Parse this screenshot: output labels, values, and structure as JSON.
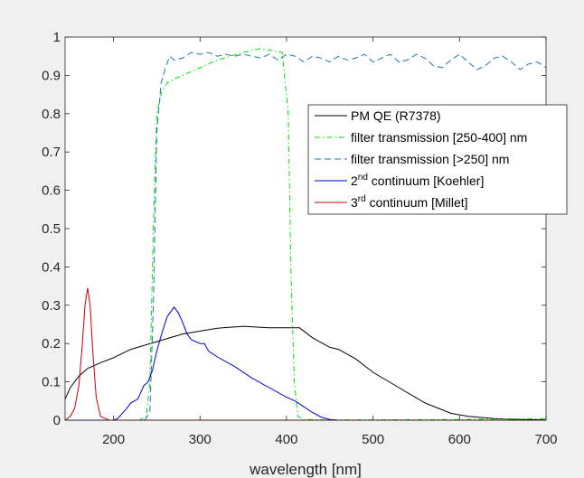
{
  "chart_data": {
    "type": "line",
    "title": "",
    "xlabel": "wavelength [nm]",
    "ylabel": "",
    "xlim": [
      144,
      700
    ],
    "ylim": [
      0,
      1
    ],
    "xticks": [
      200,
      300,
      400,
      500,
      600,
      700
    ],
    "yticks": [
      0,
      0.1,
      0.2,
      0.3,
      0.4,
      0.5,
      0.6,
      0.7,
      0.8,
      0.9,
      1
    ],
    "xtick_labels": [
      "200",
      "300",
      "400",
      "500",
      "600",
      "700"
    ],
    "ytick_labels": [
      "0",
      "0.1",
      "0.2",
      "0.3",
      "0.4",
      "0.5",
      "0.6",
      "0.7",
      "0.8",
      "0.9",
      "1"
    ],
    "grid": false,
    "legend_position": "top-right",
    "series": [
      {
        "name": "PM QE (R7378)",
        "legend_text": "PM QE (R7378)",
        "color": "#000000",
        "dash": "solid",
        "x": [
          144,
          150,
          160,
          170,
          185,
          200,
          220,
          250,
          280,
          320,
          350,
          380,
          415,
          430,
          450,
          460,
          480,
          500,
          530,
          560,
          590,
          610,
          640,
          670,
          700
        ],
        "y": [
          0.055,
          0.085,
          0.115,
          0.135,
          0.15,
          0.163,
          0.185,
          0.205,
          0.225,
          0.24,
          0.245,
          0.241,
          0.241,
          0.215,
          0.19,
          0.185,
          0.16,
          0.125,
          0.085,
          0.045,
          0.018,
          0.01,
          0.004,
          0.002,
          0.001
        ]
      },
      {
        "name": "filter transmission [250-400] nm",
        "legend_text": "filter transmission [250-400] nm",
        "color": "#00e600",
        "dash": "dashdot",
        "x": [
          144,
          230,
          238,
          242,
          246,
          250,
          256,
          262,
          270,
          290,
          320,
          350,
          370,
          395,
          402,
          405,
          409,
          413,
          420,
          440,
          500,
          600,
          700
        ],
        "y": [
          0,
          0,
          0.01,
          0.1,
          0.5,
          0.8,
          0.86,
          0.88,
          0.89,
          0.91,
          0.94,
          0.96,
          0.97,
          0.96,
          0.8,
          0.4,
          0.1,
          0.01,
          0.002,
          0.001,
          0.001,
          0.002,
          0.004
        ]
      },
      {
        "name": "filter transmission [>250] nm",
        "legend_text": "filter transmission [>250] nm",
        "color": "#1f77b4",
        "dash": "dashed",
        "x": [
          144,
          236,
          242,
          246,
          250,
          255,
          260,
          265,
          270,
          280,
          290,
          300,
          310,
          320,
          330,
          340,
          350,
          360,
          370,
          380,
          390,
          400,
          410,
          420,
          430,
          440,
          450,
          460,
          470,
          480,
          490,
          500,
          510,
          520,
          530,
          540,
          550,
          560,
          570,
          580,
          590,
          600,
          610,
          620,
          630,
          640,
          650,
          660,
          670,
          680,
          690,
          700
        ],
        "y": [
          0,
          0,
          0.02,
          0.3,
          0.75,
          0.88,
          0.92,
          0.95,
          0.94,
          0.945,
          0.96,
          0.955,
          0.96,
          0.95,
          0.955,
          0.95,
          0.955,
          0.95,
          0.945,
          0.955,
          0.94,
          0.955,
          0.95,
          0.935,
          0.95,
          0.945,
          0.935,
          0.95,
          0.94,
          0.945,
          0.955,
          0.935,
          0.945,
          0.955,
          0.935,
          0.94,
          0.955,
          0.945,
          0.925,
          0.92,
          0.94,
          0.955,
          0.935,
          0.915,
          0.925,
          0.945,
          0.95,
          0.935,
          0.915,
          0.93,
          0.935,
          0.92
        ]
      },
      {
        "name": "2nd continuum [Koehler]",
        "legend_text": "continuum [Koehler]",
        "legend_sup": "nd",
        "legend_num": "2",
        "color": "#0000cc",
        "dash": "solid",
        "x": [
          144,
          200,
          205,
          215,
          220,
          228,
          235,
          240,
          245,
          250,
          255,
          262,
          270,
          275,
          280,
          285,
          290,
          300,
          305,
          310,
          320,
          340,
          360,
          380,
          400,
          410,
          420,
          430,
          440,
          450,
          460
        ],
        "y": [
          0,
          0,
          0.005,
          0.03,
          0.045,
          0.055,
          0.09,
          0.1,
          0.13,
          0.18,
          0.22,
          0.27,
          0.295,
          0.28,
          0.255,
          0.225,
          0.21,
          0.2,
          0.2,
          0.18,
          0.165,
          0.14,
          0.11,
          0.085,
          0.06,
          0.05,
          0.035,
          0.02,
          0.008,
          0.002,
          0
        ]
      },
      {
        "name": "3rd continuum [Millet]",
        "legend_text": "continuum [Millet]",
        "legend_sup": "rd",
        "legend_num": "3",
        "color": "#cc0000",
        "dash": "solid",
        "x": [
          144,
          150,
          155,
          160,
          164,
          167,
          170,
          173,
          176,
          180,
          185,
          195,
          300,
          450,
          700
        ],
        "y": [
          0,
          0.01,
          0.03,
          0.09,
          0.2,
          0.3,
          0.345,
          0.3,
          0.18,
          0.06,
          0.01,
          0,
          0,
          0,
          0
        ]
      }
    ]
  }
}
